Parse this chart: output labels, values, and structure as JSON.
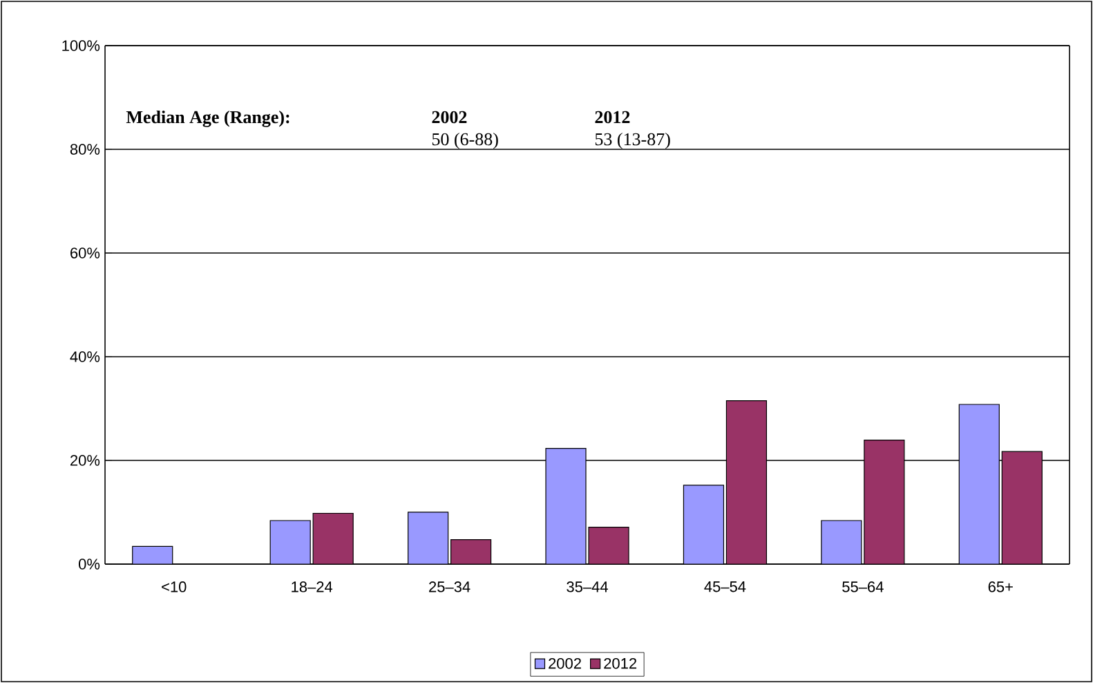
{
  "chart_data": {
    "type": "bar",
    "categories": [
      "<10",
      "18–24",
      "25–34",
      "35–44",
      "45–54",
      "55–64",
      "65+"
    ],
    "series": [
      {
        "name": "2002",
        "color": "#9999ff",
        "values": [
          3.4,
          8.4,
          10.0,
          22.3,
          15.2,
          8.4,
          30.8
        ]
      },
      {
        "name": "2012",
        "color": "#993366",
        "values": [
          null,
          9.8,
          4.7,
          7.1,
          31.5,
          23.9,
          21.7
        ]
      }
    ],
    "ylim": [
      0,
      100
    ],
    "yticks": [
      {
        "value": 0,
        "label": "0%"
      },
      {
        "value": 20,
        "label": "20%"
      },
      {
        "value": 40,
        "label": "40%"
      },
      {
        "value": 60,
        "label": "60%"
      },
      {
        "value": 80,
        "label": "80%"
      },
      {
        "value": 100,
        "label": "100%"
      }
    ],
    "grid": "y",
    "legend": "bottom",
    "annotations": [
      "Median Age (Range):",
      "2002",
      "50 (6-88)",
      "2012",
      "53 (13-87)"
    ]
  }
}
